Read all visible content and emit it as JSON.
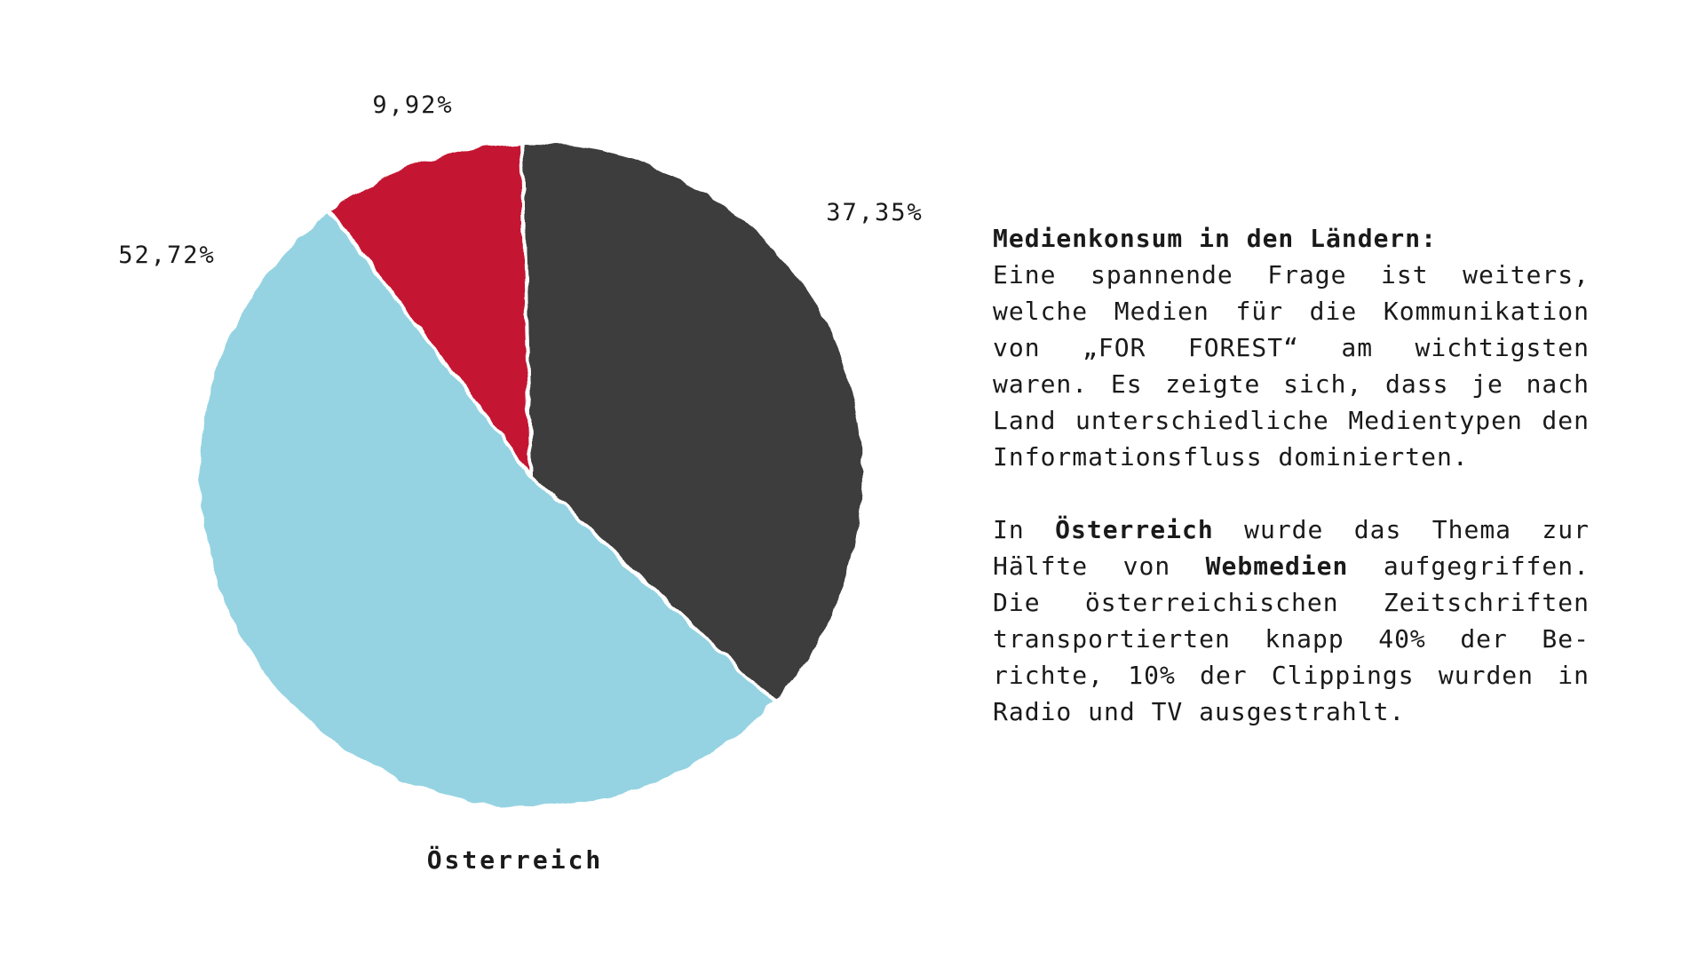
{
  "chart_data": {
    "type": "pie",
    "title": "Österreich",
    "slices": [
      {
        "label": "37,35%",
        "value": 37.35,
        "color": "#3d3c3d"
      },
      {
        "label": "52,72%",
        "value": 52.72,
        "color": "#95d3e2"
      },
      {
        "label": "9,92%",
        "value": 9.92,
        "color": "#c41531"
      }
    ]
  },
  "text": {
    "heading": "Medienkonsum in den Ländern:",
    "para1": "Eine spannende Frage ist weiters, welche Medien für die Kommunikation von „FOR FOREST“ am wichtigsten waren. Es zeigte sich, dass je nach Land unterschiedliche Medientypen den Informationsfluss dominierten.",
    "para2_a": "In ",
    "para2_b": "Österreich",
    "para2_c": " wurde das Thema zur Hälfte von ",
    "para2_d": "Webmedien",
    "para2_e": " aufgegriffen. Die österreichischen Zeitschriften transportierten knapp 40% der Be-richte, 10% der Clippings wurden in Radio und TV ausgestrahlt."
  }
}
